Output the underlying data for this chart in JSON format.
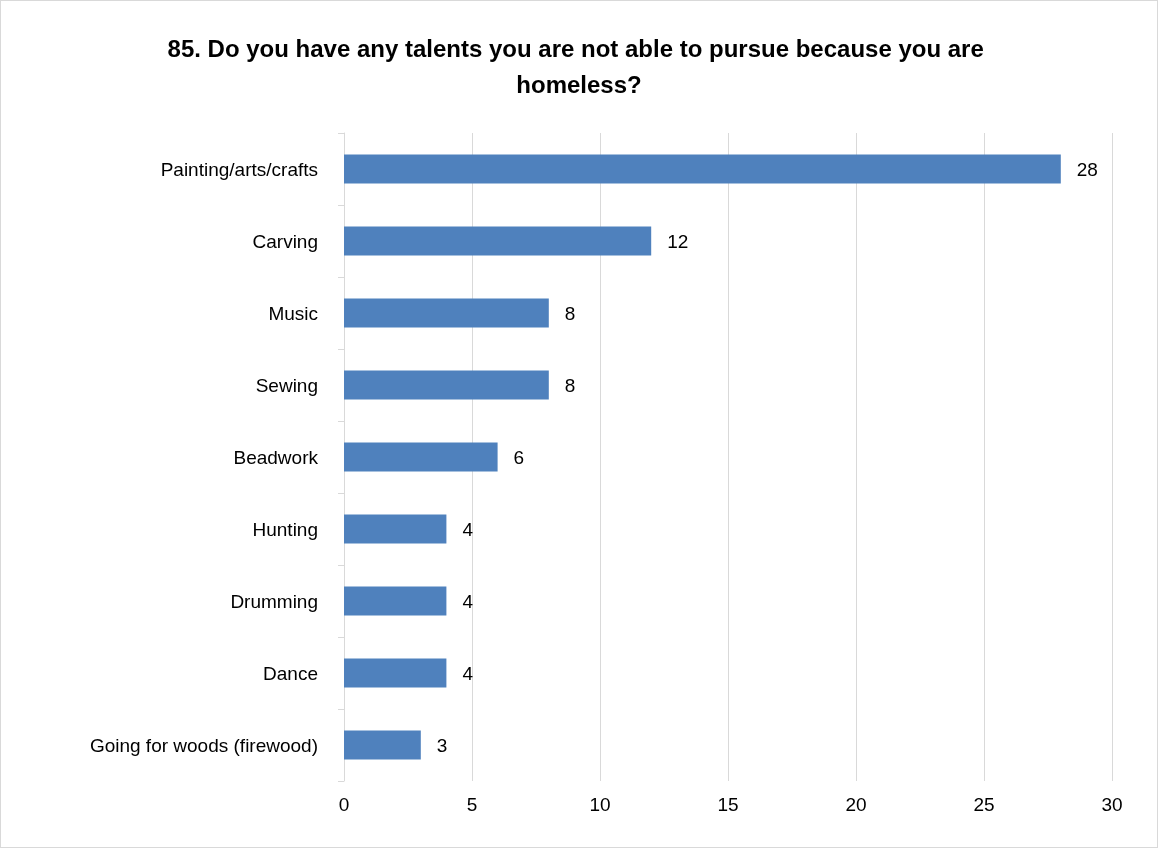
{
  "chart_data": {
    "type": "bar",
    "orientation": "horizontal",
    "title": "85. Do you have any talents you are not able to pursue because you are homeless?",
    "categories": [
      "Painting/arts/crafts",
      "Carving",
      "Music",
      "Sewing",
      "Beadwork",
      "Hunting",
      "Drumming",
      "Dance",
      "Going for woods (firewood)"
    ],
    "values": [
      28,
      12,
      8,
      8,
      6,
      4,
      4,
      4,
      3
    ],
    "color": "#4f81bd",
    "xlim": [
      0,
      30
    ],
    "xticks": [
      0,
      5,
      10,
      15,
      20,
      25,
      30
    ],
    "grid": "x",
    "data_labels": true
  }
}
